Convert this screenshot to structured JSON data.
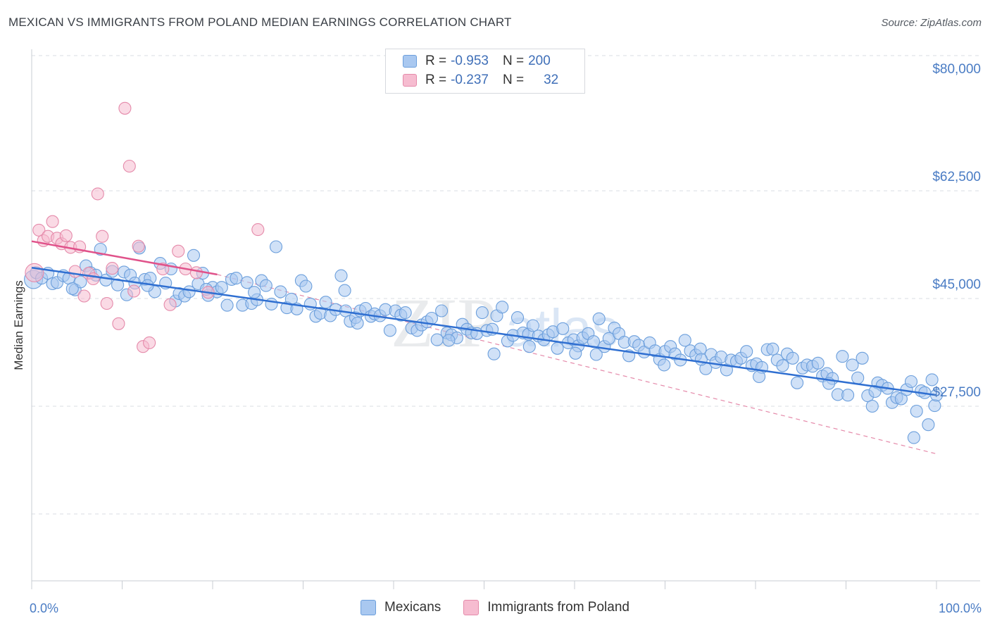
{
  "title": "MEXICAN VS IMMIGRANTS FROM POLAND MEDIAN EARNINGS CORRELATION CHART",
  "source": "Source: ZipAtlas.com",
  "watermark": {
    "zip": "ZIP",
    "atlas": "atlas"
  },
  "colors": {
    "blue_fill": "#a9c8f0",
    "blue_stroke": "#6c9fdc",
    "blue_line": "#2f6fd1",
    "pink_fill": "#f6bcd0",
    "pink_stroke": "#e58aaa",
    "pink_line": "#e0528a",
    "axis_text": "#4a7cc4",
    "grid": "#d9dde3"
  },
  "legend": {
    "rows": [
      {
        "r_label": "R =",
        "r_value": "-0.953",
        "n_label": "N =",
        "n_value": "200"
      },
      {
        "r_label": "R =",
        "r_value": "-0.237",
        "n_label": "N =",
        "n_value": "32"
      }
    ]
  },
  "bottom_legend": [
    "Mexicans",
    "Immigrants from Poland"
  ],
  "chart_data": {
    "type": "scatter",
    "ylabel": "Median Earnings",
    "x_tick_labels": [
      "0.0%",
      "100.0%"
    ],
    "y_tick_labels": [
      "$80,000",
      "$62,500",
      "$45,000",
      "$27,500"
    ],
    "y_ticks": [
      80000,
      62500,
      45000,
      27500
    ],
    "xlim": [
      0,
      100
    ],
    "ylim": [
      10000,
      82500
    ],
    "grid": "horizontal-dashed",
    "legend_placement": "top-center",
    "series": [
      {
        "name": "Mexicans",
        "trend": {
          "x": [
            0,
            100
          ],
          "y": [
            47600,
            26900
          ]
        },
        "points": [
          [
            0.2,
            45700
          ],
          [
            0.5,
            46800
          ],
          [
            1.1,
            45900
          ],
          [
            1.8,
            46700
          ],
          [
            2.3,
            45000
          ],
          [
            2.8,
            45200
          ],
          [
            3.5,
            46300
          ],
          [
            4.1,
            45900
          ],
          [
            4.8,
            44000
          ],
          [
            5.4,
            45300
          ],
          [
            6.0,
            47900
          ],
          [
            6.5,
            46800
          ],
          [
            7.1,
            46400
          ],
          [
            7.6,
            50600
          ],
          [
            8.2,
            45600
          ],
          [
            8.9,
            47000
          ],
          [
            9.5,
            44800
          ],
          [
            10.2,
            46900
          ],
          [
            10.9,
            46400
          ],
          [
            11.4,
            45100
          ],
          [
            11.9,
            50800
          ],
          [
            12.5,
            45700
          ],
          [
            13.1,
            45900
          ],
          [
            13.6,
            43700
          ],
          [
            14.2,
            48300
          ],
          [
            14.8,
            45100
          ],
          [
            15.4,
            47400
          ],
          [
            15.9,
            42200
          ],
          [
            16.3,
            43400
          ],
          [
            16.9,
            43000
          ],
          [
            17.4,
            43700
          ],
          [
            17.9,
            49600
          ],
          [
            18.4,
            45000
          ],
          [
            18.9,
            46700
          ],
          [
            19.5,
            43100
          ],
          [
            20.0,
            44400
          ],
          [
            20.5,
            43700
          ],
          [
            21.0,
            44400
          ],
          [
            21.6,
            41500
          ],
          [
            22.1,
            45700
          ],
          [
            22.6,
            45900
          ],
          [
            23.3,
            41500
          ],
          [
            23.8,
            45200
          ],
          [
            24.3,
            41800
          ],
          [
            24.9,
            42400
          ],
          [
            25.4,
            45500
          ],
          [
            25.9,
            44700
          ],
          [
            26.5,
            41700
          ],
          [
            27.0,
            51000
          ],
          [
            27.5,
            43700
          ],
          [
            28.2,
            41100
          ],
          [
            28.7,
            42500
          ],
          [
            29.3,
            40900
          ],
          [
            29.8,
            45500
          ],
          [
            30.3,
            44600
          ],
          [
            30.8,
            41700
          ],
          [
            31.4,
            39700
          ],
          [
            31.9,
            40200
          ],
          [
            32.5,
            42000
          ],
          [
            33.0,
            39800
          ],
          [
            33.6,
            40800
          ],
          [
            34.2,
            46300
          ],
          [
            34.7,
            40600
          ],
          [
            35.2,
            38900
          ],
          [
            35.8,
            39500
          ],
          [
            36.3,
            40600
          ],
          [
            36.9,
            41000
          ],
          [
            37.5,
            39700
          ],
          [
            37.9,
            40100
          ],
          [
            38.5,
            39800
          ],
          [
            39.1,
            40800
          ],
          [
            39.6,
            37400
          ],
          [
            40.2,
            40600
          ],
          [
            40.8,
            39900
          ],
          [
            41.3,
            40300
          ],
          [
            42.0,
            37800
          ],
          [
            42.6,
            37400
          ],
          [
            43.1,
            38300
          ],
          [
            43.7,
            38800
          ],
          [
            44.2,
            39400
          ],
          [
            44.8,
            35900
          ],
          [
            45.3,
            40600
          ],
          [
            45.9,
            37000
          ],
          [
            46.4,
            36700
          ],
          [
            47.0,
            36200
          ],
          [
            47.6,
            38400
          ],
          [
            48.1,
            37600
          ],
          [
            48.6,
            37000
          ],
          [
            49.2,
            36900
          ],
          [
            49.8,
            40300
          ],
          [
            50.3,
            37400
          ],
          [
            50.9,
            37600
          ],
          [
            51.4,
            39800
          ],
          [
            52.0,
            41200
          ],
          [
            52.6,
            35700
          ],
          [
            53.2,
            36600
          ],
          [
            53.7,
            39500
          ],
          [
            54.3,
            37000
          ],
          [
            54.9,
            36800
          ],
          [
            55.4,
            38200
          ],
          [
            56.0,
            36500
          ],
          [
            56.6,
            35900
          ],
          [
            57.1,
            36700
          ],
          [
            57.6,
            37200
          ],
          [
            58.1,
            34500
          ],
          [
            58.7,
            37700
          ],
          [
            59.3,
            35400
          ],
          [
            59.9,
            35900
          ],
          [
            60.4,
            34900
          ],
          [
            60.9,
            36200
          ],
          [
            61.5,
            36900
          ],
          [
            62.1,
            35600
          ],
          [
            62.7,
            39300
          ],
          [
            63.3,
            34800
          ],
          [
            63.8,
            36100
          ],
          [
            64.4,
            37800
          ],
          [
            64.9,
            36900
          ],
          [
            65.5,
            35500
          ],
          [
            66.0,
            33300
          ],
          [
            66.6,
            35600
          ],
          [
            67.1,
            35000
          ],
          [
            67.7,
            33900
          ],
          [
            68.3,
            35400
          ],
          [
            68.9,
            34100
          ],
          [
            69.4,
            32700
          ],
          [
            70.0,
            34000
          ],
          [
            70.6,
            34800
          ],
          [
            71.1,
            33600
          ],
          [
            71.7,
            32600
          ],
          [
            72.2,
            35800
          ],
          [
            72.8,
            34100
          ],
          [
            73.4,
            33400
          ],
          [
            73.9,
            34400
          ],
          [
            74.5,
            31200
          ],
          [
            75.1,
            33500
          ],
          [
            75.6,
            32200
          ],
          [
            76.2,
            33100
          ],
          [
            76.8,
            31000
          ],
          [
            77.3,
            32600
          ],
          [
            77.9,
            32400
          ],
          [
            78.4,
            32900
          ],
          [
            79.0,
            34000
          ],
          [
            79.6,
            31700
          ],
          [
            80.1,
            32000
          ],
          [
            80.7,
            31400
          ],
          [
            81.3,
            34300
          ],
          [
            81.9,
            34400
          ],
          [
            82.4,
            32600
          ],
          [
            83.0,
            31700
          ],
          [
            83.5,
            33600
          ],
          [
            84.1,
            32900
          ],
          [
            84.6,
            28900
          ],
          [
            85.2,
            31300
          ],
          [
            85.7,
            31800
          ],
          [
            86.3,
            31600
          ],
          [
            86.9,
            32100
          ],
          [
            87.4,
            30000
          ],
          [
            87.9,
            30400
          ],
          [
            88.5,
            29600
          ],
          [
            89.1,
            27000
          ],
          [
            89.6,
            33200
          ],
          [
            90.2,
            26900
          ],
          [
            90.7,
            31800
          ],
          [
            91.3,
            29700
          ],
          [
            91.8,
            32900
          ],
          [
            92.4,
            26800
          ],
          [
            92.9,
            25100
          ],
          [
            93.5,
            28900
          ],
          [
            94.0,
            28500
          ],
          [
            94.6,
            28000
          ],
          [
            95.1,
            25700
          ],
          [
            95.6,
            26500
          ],
          [
            96.1,
            26300
          ],
          [
            96.7,
            27800
          ],
          [
            97.2,
            29100
          ],
          [
            97.8,
            24300
          ],
          [
            98.3,
            27600
          ],
          [
            98.7,
            27300
          ],
          [
            99.1,
            22100
          ],
          [
            99.5,
            29400
          ],
          [
            99.8,
            25200
          ],
          [
            100.0,
            26900
          ],
          [
            4.5,
            44200
          ],
          [
            12.8,
            44700
          ],
          [
            24.6,
            43600
          ],
          [
            36.0,
            38600
          ],
          [
            46.1,
            35800
          ],
          [
            51.1,
            33600
          ],
          [
            62.4,
            33500
          ],
          [
            74.0,
            32700
          ],
          [
            97.5,
            20000
          ],
          [
            34.6,
            43900
          ],
          [
            19.3,
            44100
          ],
          [
            10.5,
            43200
          ],
          [
            55.0,
            34800
          ],
          [
            88.1,
            28800
          ],
          [
            69.9,
            31800
          ],
          [
            80.4,
            29900
          ],
          [
            93.2,
            27500
          ],
          [
            60.1,
            33700
          ]
        ]
      },
      {
        "name": "Immigrants from Poland",
        "trend": {
          "x": [
            0,
            20.5
          ],
          "y": [
            51900,
            46500
          ]
        },
        "points": [
          [
            0.3,
            46800
          ],
          [
            0.8,
            53700
          ],
          [
            1.3,
            52000
          ],
          [
            1.8,
            52700
          ],
          [
            2.3,
            55100
          ],
          [
            2.8,
            52400
          ],
          [
            3.3,
            51500
          ],
          [
            3.8,
            52800
          ],
          [
            4.3,
            50900
          ],
          [
            4.8,
            47000
          ],
          [
            5.3,
            51000
          ],
          [
            5.8,
            43000
          ],
          [
            6.3,
            46700
          ],
          [
            6.8,
            45800
          ],
          [
            7.3,
            59600
          ],
          [
            7.8,
            52700
          ],
          [
            8.3,
            41800
          ],
          [
            8.9,
            47500
          ],
          [
            9.6,
            38500
          ],
          [
            10.3,
            73500
          ],
          [
            10.8,
            64100
          ],
          [
            11.3,
            43800
          ],
          [
            11.8,
            51100
          ],
          [
            12.3,
            34800
          ],
          [
            13.0,
            35400
          ],
          [
            14.5,
            47400
          ],
          [
            15.3,
            41600
          ],
          [
            16.2,
            50300
          ],
          [
            17.0,
            47400
          ],
          [
            18.2,
            46800
          ],
          [
            19.5,
            43600
          ],
          [
            25.0,
            53800
          ]
        ]
      }
    ]
  }
}
